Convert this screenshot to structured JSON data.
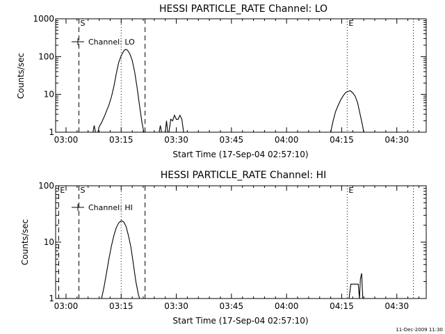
{
  "footer_timestamp": "11-Dec-2009 11:30",
  "chart_data": [
    {
      "type": "line",
      "title": "HESSI PARTICLE_RATE Channel: LO",
      "xlabel": "Start Time (17-Sep-04 02:57:10)",
      "ylabel": "Counts/sec",
      "y_scale": "log",
      "ylim": [
        1,
        1000
      ],
      "xlim": [
        "02:57:10",
        "04:38:00"
      ],
      "x_ticks": [
        "03:00",
        "03:15",
        "03:30",
        "03:45",
        "04:00",
        "04:15",
        "04:30"
      ],
      "y_ticks": [
        "1",
        "10",
        "100",
        "1000"
      ],
      "legend": {
        "label": "Channel: LO",
        "placement": "top-left"
      },
      "markers": [
        {
          "label": "S",
          "x": "03:03:30",
          "style": "dashed"
        },
        {
          "label": "",
          "x": "03:21:30",
          "style": "dashed"
        },
        {
          "label": "",
          "x": "03:15:00",
          "style": "dotted"
        },
        {
          "label": "E",
          "x": "04:16:30",
          "style": "dotted"
        },
        {
          "label": "",
          "x": "04:34:30",
          "style": "dotted"
        }
      ],
      "series": [
        {
          "name": "Channel: LO",
          "segments": [
            [
              [
                "03:07:20",
                1
              ],
              [
                "03:07:40",
                1.5
              ],
              [
                "03:08:00",
                1
              ]
            ],
            [
              [
                "03:08:40",
                1
              ],
              [
                "03:09:00",
                1.4
              ],
              [
                "03:09:40",
                1.8
              ],
              [
                "03:10:20",
                2.5
              ],
              [
                "03:11:00",
                3.6
              ],
              [
                "03:11:40",
                5.2
              ],
              [
                "03:12:20",
                8.5
              ],
              [
                "03:13:00",
                16
              ],
              [
                "03:13:40",
                35
              ],
              [
                "03:14:20",
                70
              ],
              [
                "03:15:00",
                105
              ],
              [
                "03:15:40",
                140
              ],
              [
                "03:16:10",
                155
              ],
              [
                "03:16:40",
                150
              ],
              [
                "03:17:20",
                120
              ],
              [
                "03:18:00",
                80
              ],
              [
                "03:18:40",
                40
              ],
              [
                "03:19:20",
                15
              ],
              [
                "03:20:00",
                5
              ],
              [
                "03:20:40",
                1.8
              ],
              [
                "03:21:10",
                1
              ]
            ],
            [
              [
                "03:25:20",
                1
              ],
              [
                "03:25:40",
                1.5
              ],
              [
                "03:26:00",
                1
              ]
            ],
            [
              [
                "03:27:00",
                1
              ],
              [
                "03:27:20",
                2
              ],
              [
                "03:27:40",
                1
              ]
            ],
            [
              [
                "03:28:00",
                1
              ],
              [
                "03:28:30",
                2.2
              ],
              [
                "03:29:00",
                2
              ],
              [
                "03:29:30",
                2.8
              ],
              [
                "03:30:00",
                2.2
              ],
              [
                "03:30:30",
                2.2
              ],
              [
                "03:31:00",
                2.8
              ],
              [
                "03:31:30",
                2.2
              ],
              [
                "03:32:00",
                1
              ]
            ],
            [
              [
                "04:12:00",
                1
              ],
              [
                "04:12:40",
                2
              ],
              [
                "04:13:20",
                3.5
              ],
              [
                "04:14:00",
                5
              ],
              [
                "04:14:40",
                7
              ],
              [
                "04:15:20",
                9
              ],
              [
                "04:16:00",
                11
              ],
              [
                "04:16:40",
                12
              ],
              [
                "04:17:20",
                12.5
              ],
              [
                "04:18:00",
                11
              ],
              [
                "04:18:40",
                9
              ],
              [
                "04:19:20",
                6
              ],
              [
                "04:20:00",
                3
              ],
              [
                "04:20:40",
                1.5
              ],
              [
                "04:21:00",
                1
              ]
            ]
          ]
        }
      ]
    },
    {
      "type": "line",
      "title": "HESSI PARTICLE_RATE Channel: HI",
      "xlabel": "Start Time (17-Sep-04 02:57:10)",
      "ylabel": "Counts/sec",
      "y_scale": "log",
      "ylim": [
        1,
        100
      ],
      "xlim": [
        "02:57:10",
        "04:38:00"
      ],
      "x_ticks": [
        "03:00",
        "03:15",
        "03:30",
        "03:45",
        "04:00",
        "04:15",
        "04:30"
      ],
      "y_ticks": [
        "1",
        "10",
        "100"
      ],
      "legend": {
        "label": "Channel: HI",
        "placement": "top-left"
      },
      "markers": [
        {
          "label": "E",
          "x": "02:58:00",
          "style": "dashed"
        },
        {
          "label": "S",
          "x": "03:03:30",
          "style": "dashed"
        },
        {
          "label": "",
          "x": "03:21:30",
          "style": "dashed"
        },
        {
          "label": "",
          "x": "03:15:00",
          "style": "dotted"
        },
        {
          "label": "E",
          "x": "04:16:30",
          "style": "dotted"
        },
        {
          "label": "",
          "x": "04:34:30",
          "style": "dotted"
        }
      ],
      "series": [
        {
          "name": "Channel: HI",
          "segments": [
            [
              [
                "03:09:40",
                1
              ],
              [
                "03:10:20",
                1.6
              ],
              [
                "03:11:00",
                2.8
              ],
              [
                "03:11:40",
                5
              ],
              [
                "03:12:20",
                8.5
              ],
              [
                "03:13:00",
                13
              ],
              [
                "03:13:40",
                18
              ],
              [
                "03:14:20",
                22
              ],
              [
                "03:15:00",
                24
              ],
              [
                "03:15:40",
                23
              ],
              [
                "03:16:20",
                19
              ],
              [
                "03:17:00",
                13
              ],
              [
                "03:17:40",
                8
              ],
              [
                "03:18:20",
                4
              ],
              [
                "03:19:00",
                2
              ],
              [
                "03:19:40",
                1.2
              ],
              [
                "03:20:00",
                1
              ]
            ],
            [
              [
                "04:17:00",
                1
              ],
              [
                "04:17:30",
                1.8
              ],
              [
                "04:19:30",
                1.8
              ],
              [
                "04:19:50",
                1
              ],
              [
                "04:20:05",
                2.2
              ],
              [
                "04:20:25",
                2.8
              ],
              [
                "04:20:45",
                1
              ]
            ]
          ]
        }
      ]
    }
  ]
}
